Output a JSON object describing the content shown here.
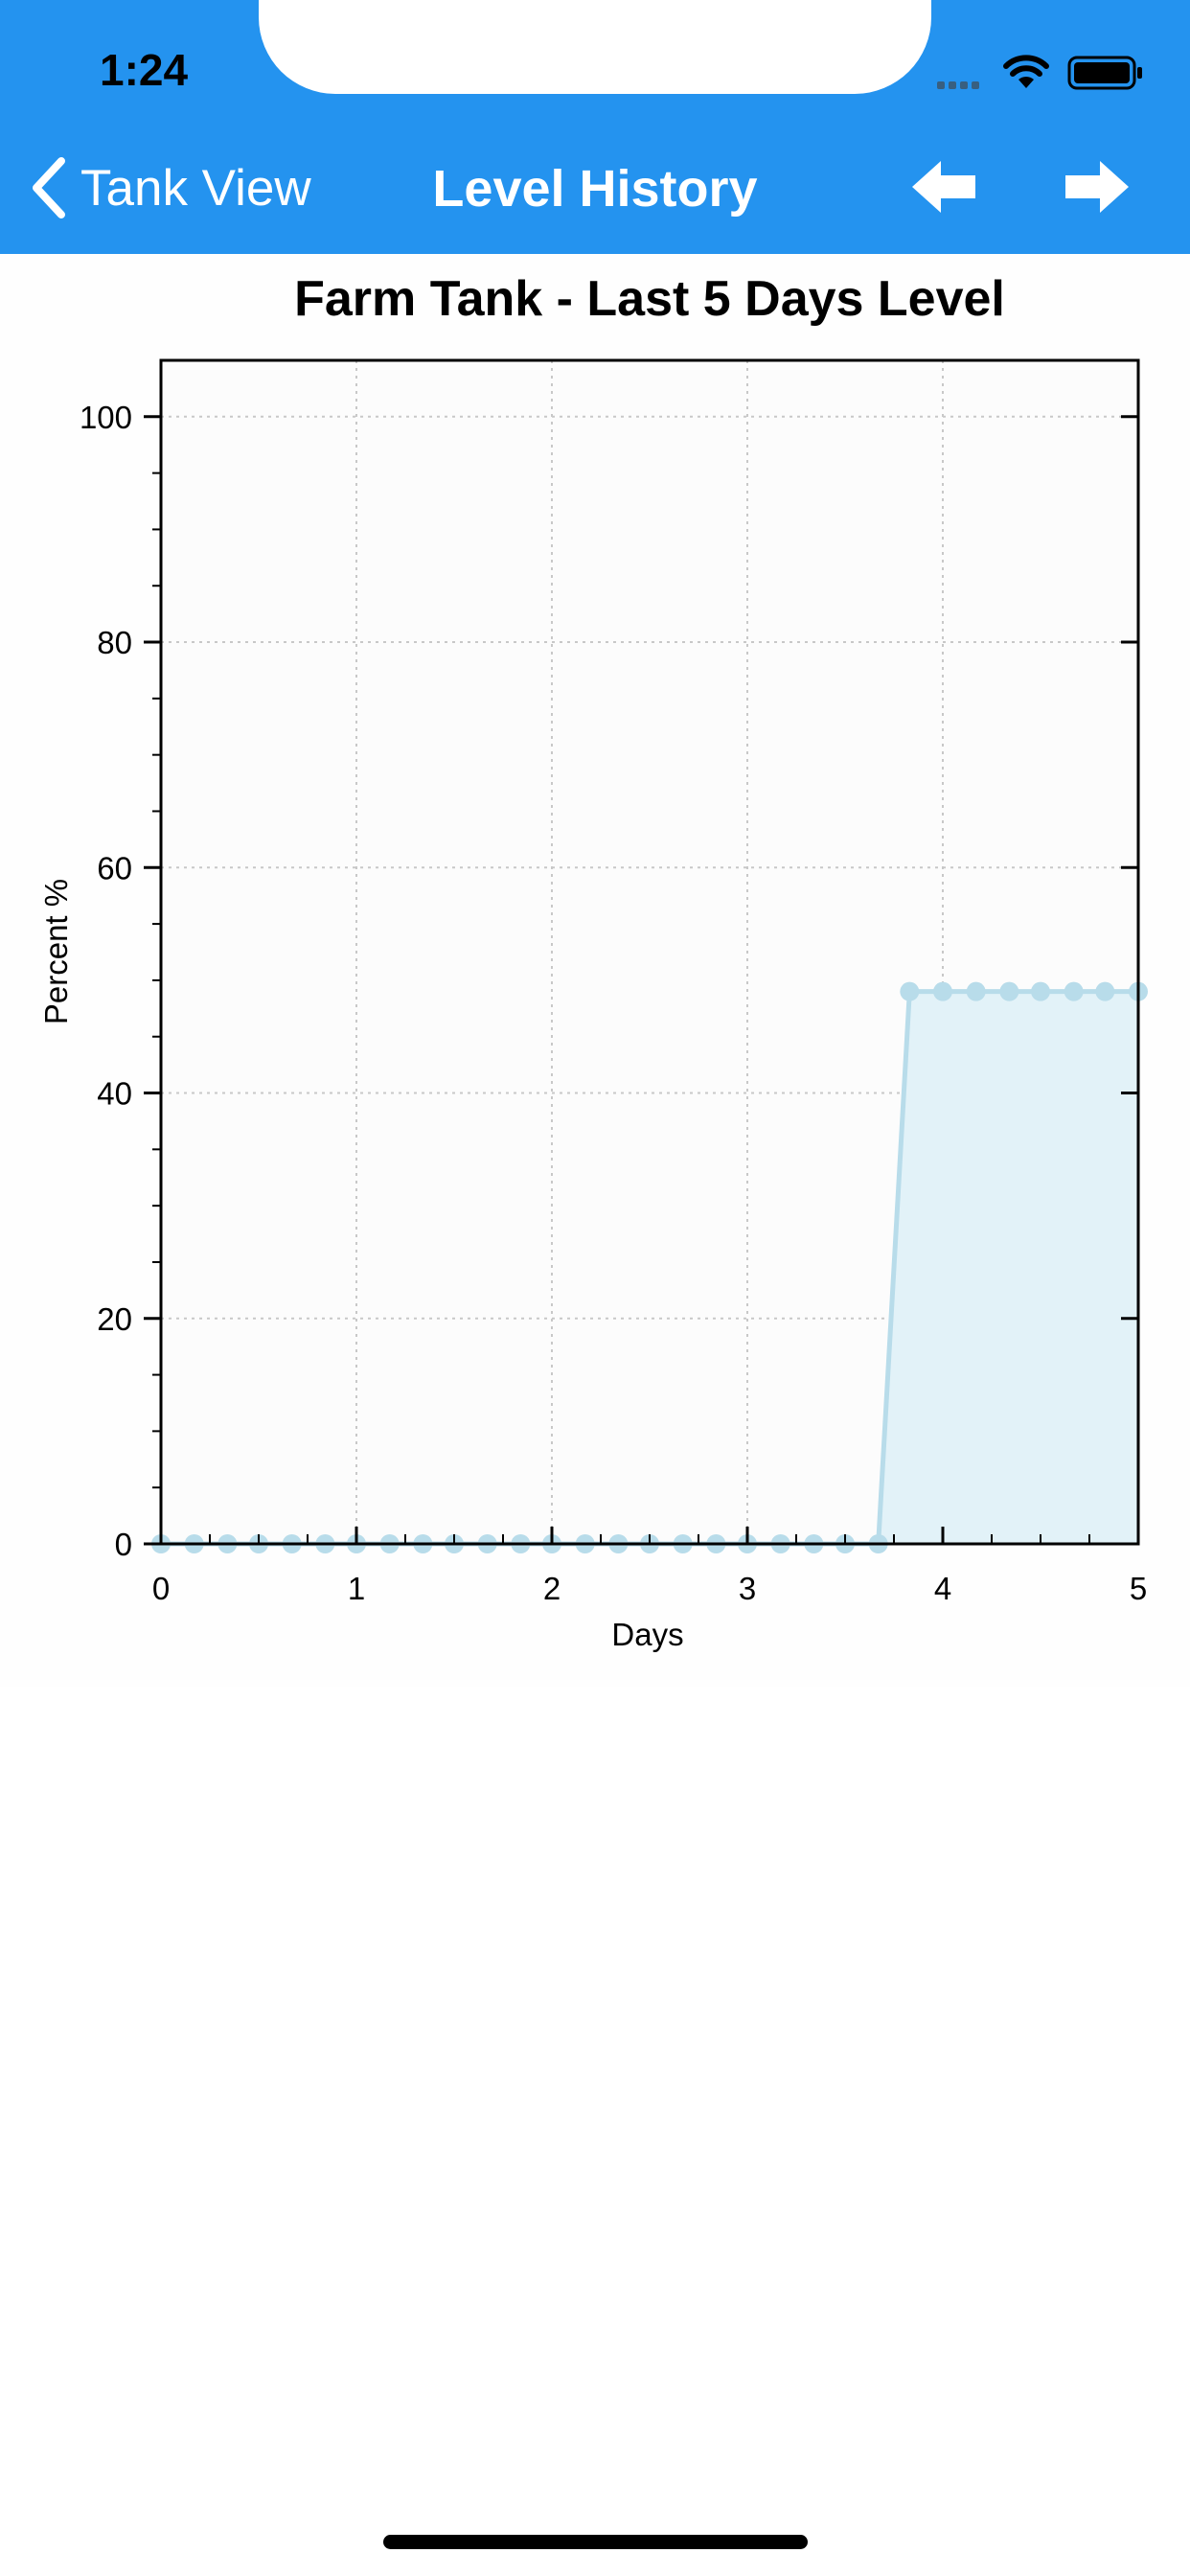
{
  "status_bar": {
    "time": "1:24"
  },
  "nav": {
    "back_label": "Tank View",
    "title": "Level History",
    "accent_color": "#2493ef"
  },
  "chart_data": {
    "type": "area",
    "title": "Farm Tank - Last 5 Days Level",
    "xlabel": "Days",
    "ylabel": "Percent %",
    "xlim": [
      0,
      5
    ],
    "ylim": [
      0,
      105
    ],
    "x_ticks": [
      0,
      1,
      2,
      3,
      4,
      5
    ],
    "y_ticks": [
      0,
      20,
      40,
      60,
      80,
      100
    ],
    "grid": true,
    "series": [
      {
        "color": "#b8dcea",
        "fill": "#e2f2f8",
        "x": [
          0,
          0.17,
          0.34,
          0.5,
          0.67,
          0.84,
          1.0,
          1.17,
          1.34,
          1.5,
          1.67,
          1.84,
          2.0,
          2.17,
          2.34,
          2.5,
          2.67,
          2.84,
          3.0,
          3.17,
          3.34,
          3.5,
          3.67,
          3.83,
          4.0,
          4.17,
          4.34,
          4.5,
          4.67,
          4.83,
          5.0
        ],
        "values": [
          0,
          0,
          0,
          0,
          0,
          0,
          0,
          0,
          0,
          0,
          0,
          0,
          0,
          0,
          0,
          0,
          0,
          0,
          0,
          0,
          0,
          0,
          0,
          49,
          49,
          49,
          49,
          49,
          49,
          49,
          49
        ]
      }
    ]
  }
}
